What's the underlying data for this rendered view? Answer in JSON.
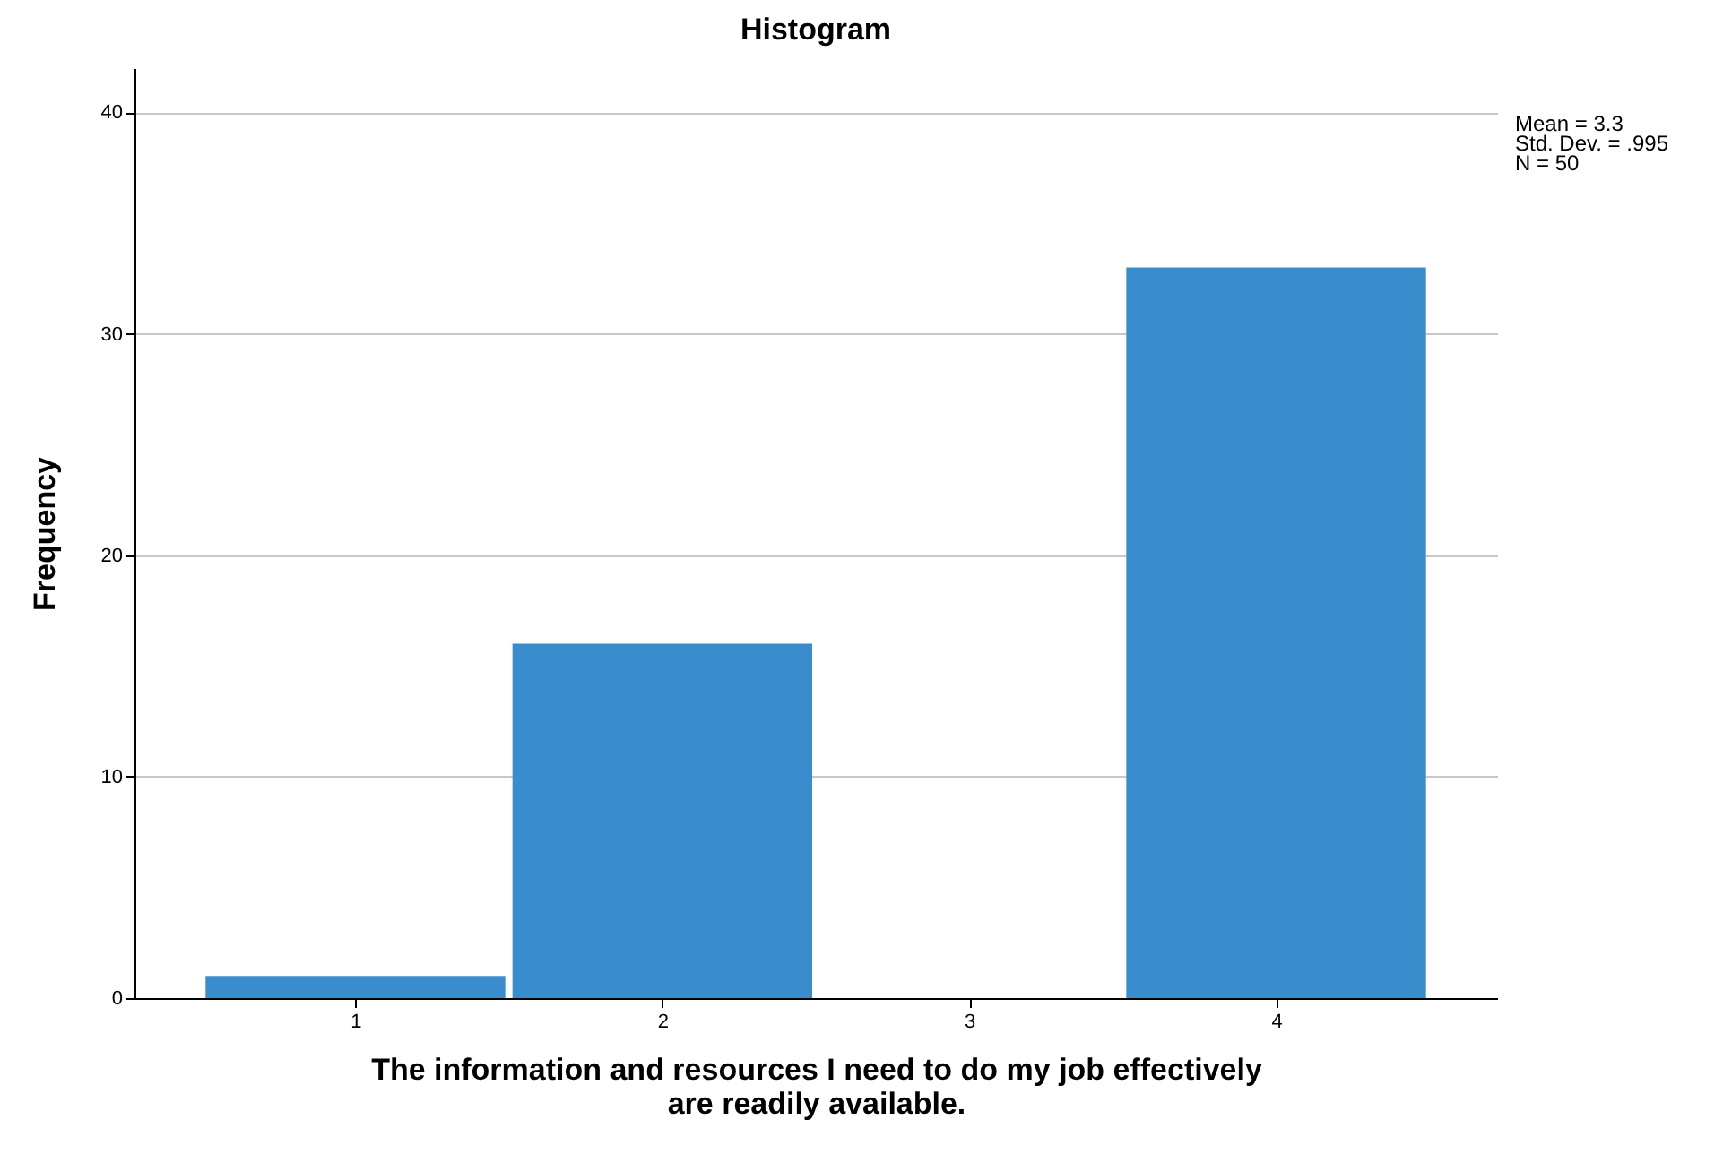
{
  "chart_data": {
    "type": "histogram",
    "title": "Histogram",
    "xlabel": "The information and resources I need to do my job effectively are readily available.",
    "ylabel": "Frequency",
    "bins": [
      0.5,
      1.5,
      2.5,
      3.5,
      4.5
    ],
    "values": [
      1,
      16,
      0,
      33
    ],
    "color": "#3a8dcc",
    "xlim": [
      0.28,
      4.72
    ],
    "xticks": [
      1,
      2,
      3,
      4
    ],
    "ylim": [
      0,
      42
    ],
    "yticks": [
      0,
      10,
      20,
      30,
      40
    ],
    "grid": "y",
    "annotations": [
      "Mean = 3.3",
      "Std. Dev. = .995",
      "N = 50"
    ]
  }
}
